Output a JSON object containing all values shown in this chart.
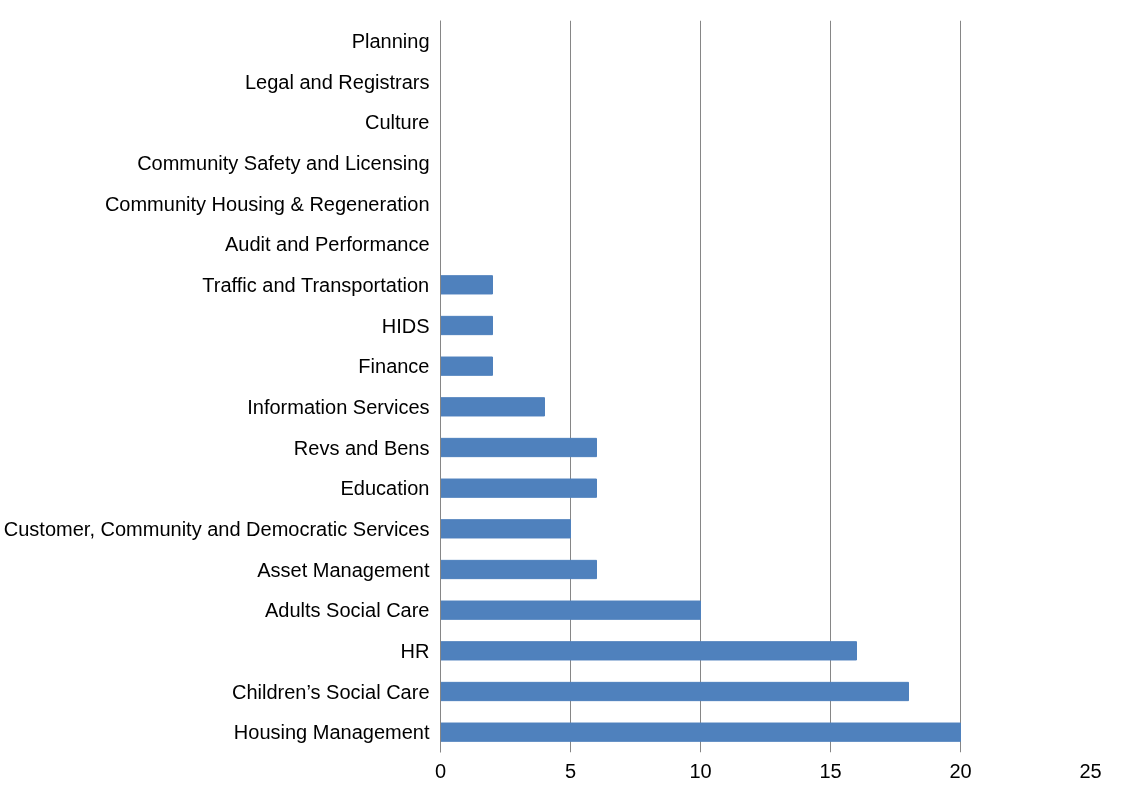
{
  "chart_data": {
    "type": "bar",
    "orientation": "horizontal",
    "categories": [
      "Planning",
      "Legal and Registrars",
      "Culture",
      "Community Safety and Licensing",
      "Community Housing & Regeneration",
      "Audit and Performance",
      "Traffic and Transportation",
      "HIDS",
      "Finance",
      "Information Services",
      "Revs and Bens",
      "Education",
      "Customer, Community and Democratic Services",
      "Asset Management",
      "Adults Social Care",
      "HR",
      "Children’s Social Care",
      "Housing Management"
    ],
    "values": [
      0,
      0,
      0,
      0,
      0,
      0,
      2,
      2,
      2,
      4,
      6,
      6,
      5,
      6,
      10,
      16,
      18,
      20
    ],
    "color": "#4f81bd",
    "xlim": [
      0,
      25
    ],
    "xticks": [
      0,
      5,
      10,
      15,
      20,
      25
    ],
    "grid": "x"
  }
}
